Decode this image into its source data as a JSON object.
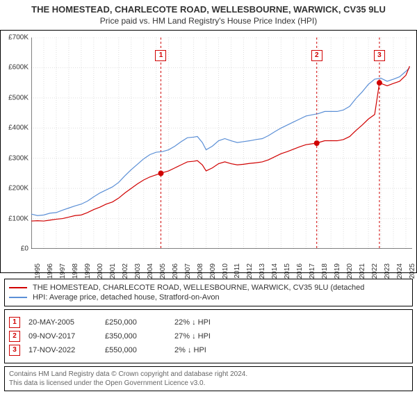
{
  "title": "THE HOMESTEAD, CHARLECOTE ROAD, WELLESBOURNE, WARWICK, CV35 9LU",
  "subtitle": "Price paid vs. HM Land Registry's House Price Index (HPI)",
  "chart": {
    "type": "line",
    "background_color": "#ffffff",
    "plot": {
      "x_domain": [
        1995,
        2025.5
      ],
      "y_domain": [
        0,
        700000
      ]
    },
    "y_axis": {
      "ticks": [
        0,
        100000,
        200000,
        300000,
        400000,
        500000,
        600000,
        700000
      ],
      "labels": [
        "£0",
        "£100K",
        "£200K",
        "£300K",
        "£400K",
        "£500K",
        "£600K",
        "£700K"
      ],
      "label_fontsize": 10,
      "tick_color": "#000000"
    },
    "x_axis": {
      "ticks": [
        1995,
        1996,
        1997,
        1998,
        1999,
        2000,
        2001,
        2002,
        2003,
        2004,
        2005,
        2006,
        2007,
        2008,
        2009,
        2010,
        2011,
        2012,
        2013,
        2014,
        2015,
        2016,
        2017,
        2018,
        2019,
        2020,
        2021,
        2022,
        2023,
        2024,
        2025
      ],
      "labels": [
        "1995",
        "1996",
        "1997",
        "1998",
        "1999",
        "2000",
        "2001",
        "2002",
        "2003",
        "2004",
        "2005",
        "2006",
        "2007",
        "2008",
        "2009",
        "2010",
        "2011",
        "2012",
        "2013",
        "2014",
        "2015",
        "2016",
        "2017",
        "2018",
        "2019",
        "2020",
        "2021",
        "2022",
        "2023",
        "2024",
        "2025"
      ],
      "label_fontsize": 10,
      "rotation": -90
    },
    "grid": {
      "show": true,
      "color": "#dddddd",
      "style": "dotted",
      "width": 1
    },
    "series": [
      {
        "name": "property_price",
        "label": "THE HOMESTEAD, CHARLECOTE ROAD, WELLESBOURNE, WARWICK, CV35 9LU (detached",
        "color": "#d00000",
        "line_width": 1.2,
        "points": [
          [
            1995.0,
            92000
          ],
          [
            1995.5,
            93000
          ],
          [
            1996.0,
            92000
          ],
          [
            1996.5,
            95000
          ],
          [
            1997.0,
            98000
          ],
          [
            1997.5,
            100000
          ],
          [
            1998.0,
            105000
          ],
          [
            1998.5,
            110000
          ],
          [
            1999.0,
            112000
          ],
          [
            1999.5,
            120000
          ],
          [
            2000.0,
            130000
          ],
          [
            2000.5,
            138000
          ],
          [
            2001.0,
            148000
          ],
          [
            2001.5,
            155000
          ],
          [
            2002.0,
            168000
          ],
          [
            2002.5,
            185000
          ],
          [
            2003.0,
            200000
          ],
          [
            2003.5,
            215000
          ],
          [
            2004.0,
            228000
          ],
          [
            2004.5,
            238000
          ],
          [
            2005.0,
            245000
          ],
          [
            2005.38,
            250000
          ],
          [
            2005.5,
            252000
          ],
          [
            2006.0,
            258000
          ],
          [
            2006.5,
            268000
          ],
          [
            2007.0,
            278000
          ],
          [
            2007.5,
            288000
          ],
          [
            2008.0,
            290000
          ],
          [
            2008.3,
            292000
          ],
          [
            2008.7,
            278000
          ],
          [
            2009.0,
            258000
          ],
          [
            2009.5,
            268000
          ],
          [
            2010.0,
            282000
          ],
          [
            2010.5,
            288000
          ],
          [
            2011.0,
            282000
          ],
          [
            2011.5,
            278000
          ],
          [
            2012.0,
            280000
          ],
          [
            2012.5,
            283000
          ],
          [
            2013.0,
            285000
          ],
          [
            2013.5,
            288000
          ],
          [
            2014.0,
            295000
          ],
          [
            2014.5,
            305000
          ],
          [
            2015.0,
            315000
          ],
          [
            2015.5,
            322000
          ],
          [
            2016.0,
            330000
          ],
          [
            2016.5,
            338000
          ],
          [
            2017.0,
            345000
          ],
          [
            2017.5,
            348000
          ],
          [
            2017.86,
            350000
          ],
          [
            2018.0,
            352000
          ],
          [
            2018.5,
            358000
          ],
          [
            2019.0,
            358000
          ],
          [
            2019.5,
            358000
          ],
          [
            2020.0,
            362000
          ],
          [
            2020.5,
            372000
          ],
          [
            2021.0,
            392000
          ],
          [
            2021.5,
            410000
          ],
          [
            2022.0,
            430000
          ],
          [
            2022.5,
            445000
          ],
          [
            2022.88,
            550000
          ],
          [
            2023.0,
            548000
          ],
          [
            2023.5,
            540000
          ],
          [
            2024.0,
            548000
          ],
          [
            2024.5,
            555000
          ],
          [
            2025.0,
            575000
          ],
          [
            2025.3,
            605000
          ]
        ]
      },
      {
        "name": "hpi",
        "label": "HPI: Average price, detached house, Stratford-on-Avon",
        "color": "#5b8fd6",
        "line_width": 1.2,
        "points": [
          [
            1995.0,
            115000
          ],
          [
            1995.5,
            110000
          ],
          [
            1996.0,
            112000
          ],
          [
            1996.5,
            118000
          ],
          [
            1997.0,
            120000
          ],
          [
            1997.5,
            128000
          ],
          [
            1998.0,
            135000
          ],
          [
            1998.5,
            142000
          ],
          [
            1999.0,
            148000
          ],
          [
            1999.5,
            158000
          ],
          [
            2000.0,
            172000
          ],
          [
            2000.5,
            185000
          ],
          [
            2001.0,
            195000
          ],
          [
            2001.5,
            205000
          ],
          [
            2002.0,
            220000
          ],
          [
            2002.5,
            242000
          ],
          [
            2003.0,
            262000
          ],
          [
            2003.5,
            280000
          ],
          [
            2004.0,
            298000
          ],
          [
            2004.5,
            312000
          ],
          [
            2005.0,
            320000
          ],
          [
            2005.5,
            322000
          ],
          [
            2006.0,
            328000
          ],
          [
            2006.5,
            340000
          ],
          [
            2007.0,
            355000
          ],
          [
            2007.5,
            368000
          ],
          [
            2008.0,
            370000
          ],
          [
            2008.3,
            372000
          ],
          [
            2008.7,
            352000
          ],
          [
            2009.0,
            328000
          ],
          [
            2009.5,
            340000
          ],
          [
            2010.0,
            358000
          ],
          [
            2010.5,
            365000
          ],
          [
            2011.0,
            358000
          ],
          [
            2011.5,
            352000
          ],
          [
            2012.0,
            355000
          ],
          [
            2012.5,
            358000
          ],
          [
            2013.0,
            362000
          ],
          [
            2013.5,
            365000
          ],
          [
            2014.0,
            375000
          ],
          [
            2014.5,
            388000
          ],
          [
            2015.0,
            400000
          ],
          [
            2015.5,
            410000
          ],
          [
            2016.0,
            420000
          ],
          [
            2016.5,
            430000
          ],
          [
            2017.0,
            440000
          ],
          [
            2017.5,
            444000
          ],
          [
            2018.0,
            448000
          ],
          [
            2018.5,
            455000
          ],
          [
            2019.0,
            455000
          ],
          [
            2019.5,
            455000
          ],
          [
            2020.0,
            460000
          ],
          [
            2020.5,
            472000
          ],
          [
            2021.0,
            498000
          ],
          [
            2021.5,
            520000
          ],
          [
            2022.0,
            545000
          ],
          [
            2022.5,
            562000
          ],
          [
            2023.0,
            565000
          ],
          [
            2023.5,
            555000
          ],
          [
            2024.0,
            562000
          ],
          [
            2024.5,
            570000
          ],
          [
            2025.0,
            588000
          ],
          [
            2025.3,
            600000
          ]
        ]
      }
    ],
    "sale_markers": [
      {
        "id": "1",
        "x": 2005.38,
        "y": 250000,
        "label_top_offset": 18
      },
      {
        "id": "2",
        "x": 2017.86,
        "y": 350000,
        "label_top_offset": 18
      },
      {
        "id": "3",
        "x": 2022.88,
        "y": 550000,
        "label_top_offset": 18
      }
    ],
    "marker_style": {
      "dot_radius": 4,
      "dot_color": "#d00000",
      "guide_color": "#d00000",
      "guide_dash": "3,3",
      "box_border": "#d00000",
      "box_bg": "#ffffff"
    }
  },
  "legend": {
    "items": [
      {
        "key": "property_price",
        "color": "#d00000",
        "label": "THE HOMESTEAD, CHARLECOTE ROAD, WELLESBOURNE, WARWICK, CV35 9LU (detached"
      },
      {
        "key": "hpi",
        "color": "#5b8fd6",
        "label": "HPI: Average price, detached house, Stratford-on-Avon"
      }
    ]
  },
  "data_points": {
    "rows": [
      {
        "id": "1",
        "date": "20-MAY-2005",
        "price": "£250,000",
        "pct": "22% ↓ HPI"
      },
      {
        "id": "2",
        "date": "09-NOV-2017",
        "price": "£350,000",
        "pct": "27% ↓ HPI"
      },
      {
        "id": "3",
        "date": "17-NOV-2022",
        "price": "£550,000",
        "pct": "2% ↓ HPI"
      }
    ]
  },
  "footer": {
    "line1": "Contains HM Land Registry data © Crown copyright and database right 2024.",
    "line2": "This data is licensed under the Open Government Licence v3.0."
  }
}
